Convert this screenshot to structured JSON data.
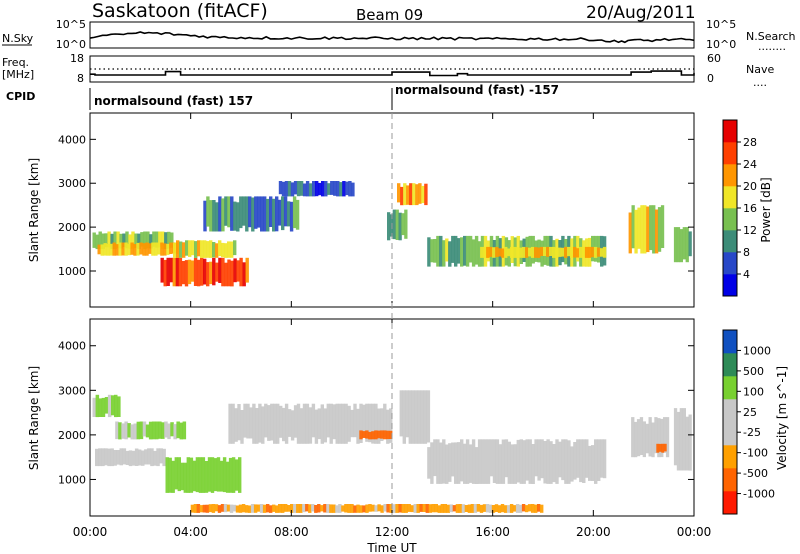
{
  "header": {
    "station": "Saskatoon (fitACF)",
    "beam": "Beam 09",
    "date": "20/Aug/2011"
  },
  "noise_panel": {
    "left_label": "N.Sky",
    "left_ticks": [
      "10^5",
      "10^0"
    ],
    "right_ticks": [
      "10^5",
      "10^0"
    ],
    "right_label": "N.Search",
    "right_legend_line": "........"
  },
  "freq_panel": {
    "left_label_line1": "Freq.",
    "left_label_line2": "[MHz]",
    "left_ticks": [
      "18",
      "8"
    ],
    "right_ticks": [
      "60",
      "0"
    ],
    "right_label": "Nave",
    "right_legend_line": "...."
  },
  "cpid": {
    "label": "CPID",
    "segments": [
      {
        "text": "normalsound (fast) 157",
        "start_hour": 0.0,
        "end_hour": 12.0
      },
      {
        "text": "normalsound (fast) -157",
        "start_hour": 12.0,
        "end_hour": 24.0
      }
    ]
  },
  "colors": {
    "power_scale": [
      "#0000e6",
      "#2848c8",
      "#3c8c78",
      "#78c050",
      "#f0e628",
      "#ff9600",
      "#ff4000",
      "#e60000"
    ],
    "velocity_scale": [
      "#ff1a00",
      "#ff6400",
      "#ffa000",
      "#c8c8c8",
      "#c8c8c8",
      "#78d030",
      "#2e8b57",
      "#1050c0"
    ],
    "grey": "#c8c8c8"
  },
  "chart_data": [
    {
      "type": "heatmap",
      "ylabel": "Slant Range [km]",
      "ylim": [
        180,
        4600
      ],
      "yticks": [
        "1000",
        "2000",
        "3000",
        "4000"
      ],
      "xlim": [
        0,
        24
      ],
      "grid": false,
      "colorbar": {
        "label": "Power [dB]",
        "ticks": [
          "4",
          "8",
          "12",
          "16",
          "20",
          "24",
          "28"
        ],
        "range": [
          0,
          32
        ]
      },
      "series": [
        {
          "name": "sky noise",
          "x": [
            0,
            1,
            2,
            3,
            4,
            5,
            6,
            8,
            10,
            12,
            14,
            16,
            18,
            20,
            21,
            21.5,
            22,
            23,
            24
          ],
          "y": [
            2.1,
            2.5,
            3.0,
            2.8,
            2.4,
            2.0,
            1.9,
            1.8,
            1.8,
            1.7,
            1.7,
            1.6,
            1.6,
            1.5,
            0.9,
            1.4,
            1.2,
            1.5,
            1.3
          ]
        },
        {
          "name": "transmit frequency",
          "x": [
            0,
            0.2,
            3,
            3.6,
            12,
            13.5,
            14.6,
            15,
            21.5,
            22.3,
            23.5,
            24
          ],
          "y": [
            11,
            10.7,
            12,
            10.7,
            11.8,
            10.5,
            11.2,
            10.7,
            11.8,
            12.2,
            10.7,
            11.5
          ]
        }
      ],
      "power_regions": [
        {
          "t0": 0.1,
          "t1": 3.3,
          "r0": 1500,
          "r1": 1900,
          "value": 14
        },
        {
          "t0": 0.3,
          "t1": 3.5,
          "r0": 1350,
          "r1": 1650,
          "value": 20
        },
        {
          "t0": 2.8,
          "t1": 6.3,
          "r0": 650,
          "r1": 1300,
          "value": 26
        },
        {
          "t0": 3.3,
          "t1": 5.8,
          "r0": 1300,
          "r1": 1700,
          "value": 18
        },
        {
          "t0": 4.5,
          "t1": 8.3,
          "r0": 1900,
          "r1": 2700,
          "value": 9
        },
        {
          "t0": 7.5,
          "t1": 10.5,
          "r0": 2700,
          "r1": 3050,
          "value": 6
        },
        {
          "t0": 11.8,
          "t1": 12.6,
          "r0": 1700,
          "r1": 2400,
          "value": 14
        },
        {
          "t0": 12.2,
          "t1": 13.4,
          "r0": 2500,
          "r1": 3000,
          "value": 22
        },
        {
          "t0": 13.4,
          "t1": 20.5,
          "r0": 1100,
          "r1": 1800,
          "value": 13
        },
        {
          "t0": 15.5,
          "t1": 20.5,
          "r0": 1300,
          "r1": 1550,
          "value": 20
        },
        {
          "t0": 21.4,
          "t1": 22.8,
          "r0": 1400,
          "r1": 2500,
          "value": 17
        },
        {
          "t0": 23.2,
          "t1": 23.9,
          "r0": 1200,
          "r1": 2000,
          "value": 15
        }
      ]
    },
    {
      "type": "heatmap",
      "ylabel": "Slant Range [km]",
      "ylim": [
        180,
        4600
      ],
      "yticks": [
        "1000",
        "2000",
        "3000",
        "4000"
      ],
      "xlim": [
        0,
        24
      ],
      "xticks": [
        "00:00",
        "04:00",
        "08:00",
        "12:00",
        "16:00",
        "20:00",
        "00:00"
      ],
      "xlabel": "Time UT",
      "grid": false,
      "colorbar": {
        "label": "Velocity [m s^-1]",
        "ticks": [
          "-1000",
          "-500",
          "-100",
          "-25",
          "25",
          "100",
          "500",
          "1000"
        ]
      },
      "velocity_regions": [
        {
          "t0": 0.1,
          "t1": 1.2,
          "r0": 2400,
          "r1": 2900,
          "value": 100
        },
        {
          "t0": 1.0,
          "t1": 3.8,
          "r0": 1900,
          "r1": 2300,
          "value": 100
        },
        {
          "t0": 0.2,
          "t1": 3.0,
          "r0": 1300,
          "r1": 1700,
          "value": 0
        },
        {
          "t0": 3.0,
          "t1": 6.0,
          "r0": 700,
          "r1": 1500,
          "value": 400
        },
        {
          "t0": 5.5,
          "t1": 12.0,
          "r0": 1800,
          "r1": 2700,
          "value": 0
        },
        {
          "t0": 10.7,
          "t1": 12.0,
          "r0": 1900,
          "r1": 2100,
          "value": -300
        },
        {
          "t0": 12.3,
          "t1": 13.5,
          "r0": 1800,
          "r1": 3000,
          "value": 0
        },
        {
          "t0": 13.4,
          "t1": 20.5,
          "r0": 900,
          "r1": 1900,
          "value": 0
        },
        {
          "t0": 4.0,
          "t1": 18.0,
          "r0": 250,
          "r1": 450,
          "value": -60
        },
        {
          "t0": 21.5,
          "t1": 23.0,
          "r0": 1500,
          "r1": 2400,
          "value": 0
        },
        {
          "t0": 22.5,
          "t1": 22.9,
          "r0": 1600,
          "r1": 1800,
          "value": -300
        },
        {
          "t0": 23.2,
          "t1": 23.9,
          "r0": 1200,
          "r1": 2600,
          "value": 0
        }
      ]
    }
  ]
}
